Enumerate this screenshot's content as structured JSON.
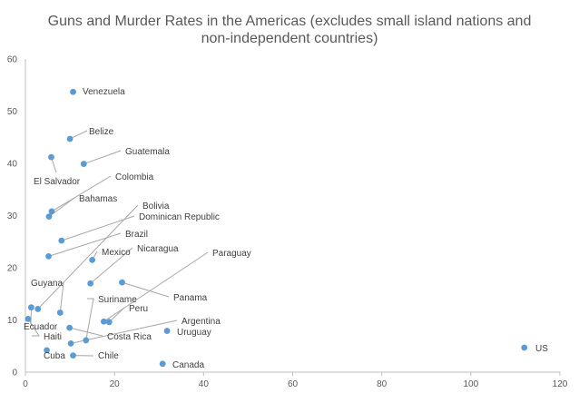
{
  "chart_data": {
    "type": "scatter",
    "title": [
      "Guns and Murder Rates in the Americas (excludes small island nations and",
      "non-independent countries)"
    ],
    "xlabel": "",
    "ylabel": "",
    "xlim": [
      0,
      120
    ],
    "ylim": [
      0,
      60
    ],
    "x_ticks": [
      0,
      20,
      40,
      60,
      80,
      100,
      120
    ],
    "y_ticks": [
      0,
      10,
      20,
      30,
      40,
      50,
      60
    ],
    "grid": false,
    "legend": "none",
    "marker_color": "#5b9bd5",
    "points": [
      {
        "label": "Venezuela",
        "x": 10.7,
        "y": 53.7
      },
      {
        "label": "Belize",
        "x": 10.0,
        "y": 44.7
      },
      {
        "label": "Guatemala",
        "x": 13.1,
        "y": 39.9
      },
      {
        "label": "El Salvador",
        "x": 5.8,
        "y": 41.2
      },
      {
        "label": "Colombia",
        "x": 5.9,
        "y": 30.8
      },
      {
        "label": "Bahamas",
        "x": 5.3,
        "y": 29.8
      },
      {
        "label": "Bolivia",
        "x": 2.8,
        "y": 12.1
      },
      {
        "label": "Dominican Republic",
        "x": 8.1,
        "y": 25.2
      },
      {
        "label": "Brazil",
        "x": 5.2,
        "y": 22.2
      },
      {
        "label": "Mexico",
        "x": 15.0,
        "y": 21.5
      },
      {
        "label": "Nicaragua",
        "x": 14.6,
        "y": 17.0
      },
      {
        "label": "Paraguay",
        "x": 17.6,
        "y": 9.7
      },
      {
        "label": "Guyana",
        "x": 7.8,
        "y": 11.4
      },
      {
        "label": "Panama",
        "x": 21.7,
        "y": 17.2
      },
      {
        "label": "Suriname",
        "x": 13.6,
        "y": 6.1
      },
      {
        "label": "Peru",
        "x": 18.8,
        "y": 9.6
      },
      {
        "label": "Ecuador",
        "x": 1.3,
        "y": 12.4
      },
      {
        "label": "Argentina",
        "x": 10.2,
        "y": 5.5
      },
      {
        "label": "Haiti",
        "x": 0.6,
        "y": 10.2
      },
      {
        "label": "Costa Rica",
        "x": 9.9,
        "y": 8.5
      },
      {
        "label": "Uruguay",
        "x": 31.8,
        "y": 7.9
      },
      {
        "label": "Cuba",
        "x": 4.8,
        "y": 4.2
      },
      {
        "label": "Chile",
        "x": 10.7,
        "y": 3.2
      },
      {
        "label": "US",
        "x": 112.0,
        "y": 4.7
      },
      {
        "label": "Canada",
        "x": 30.8,
        "y": 1.6
      }
    ]
  }
}
